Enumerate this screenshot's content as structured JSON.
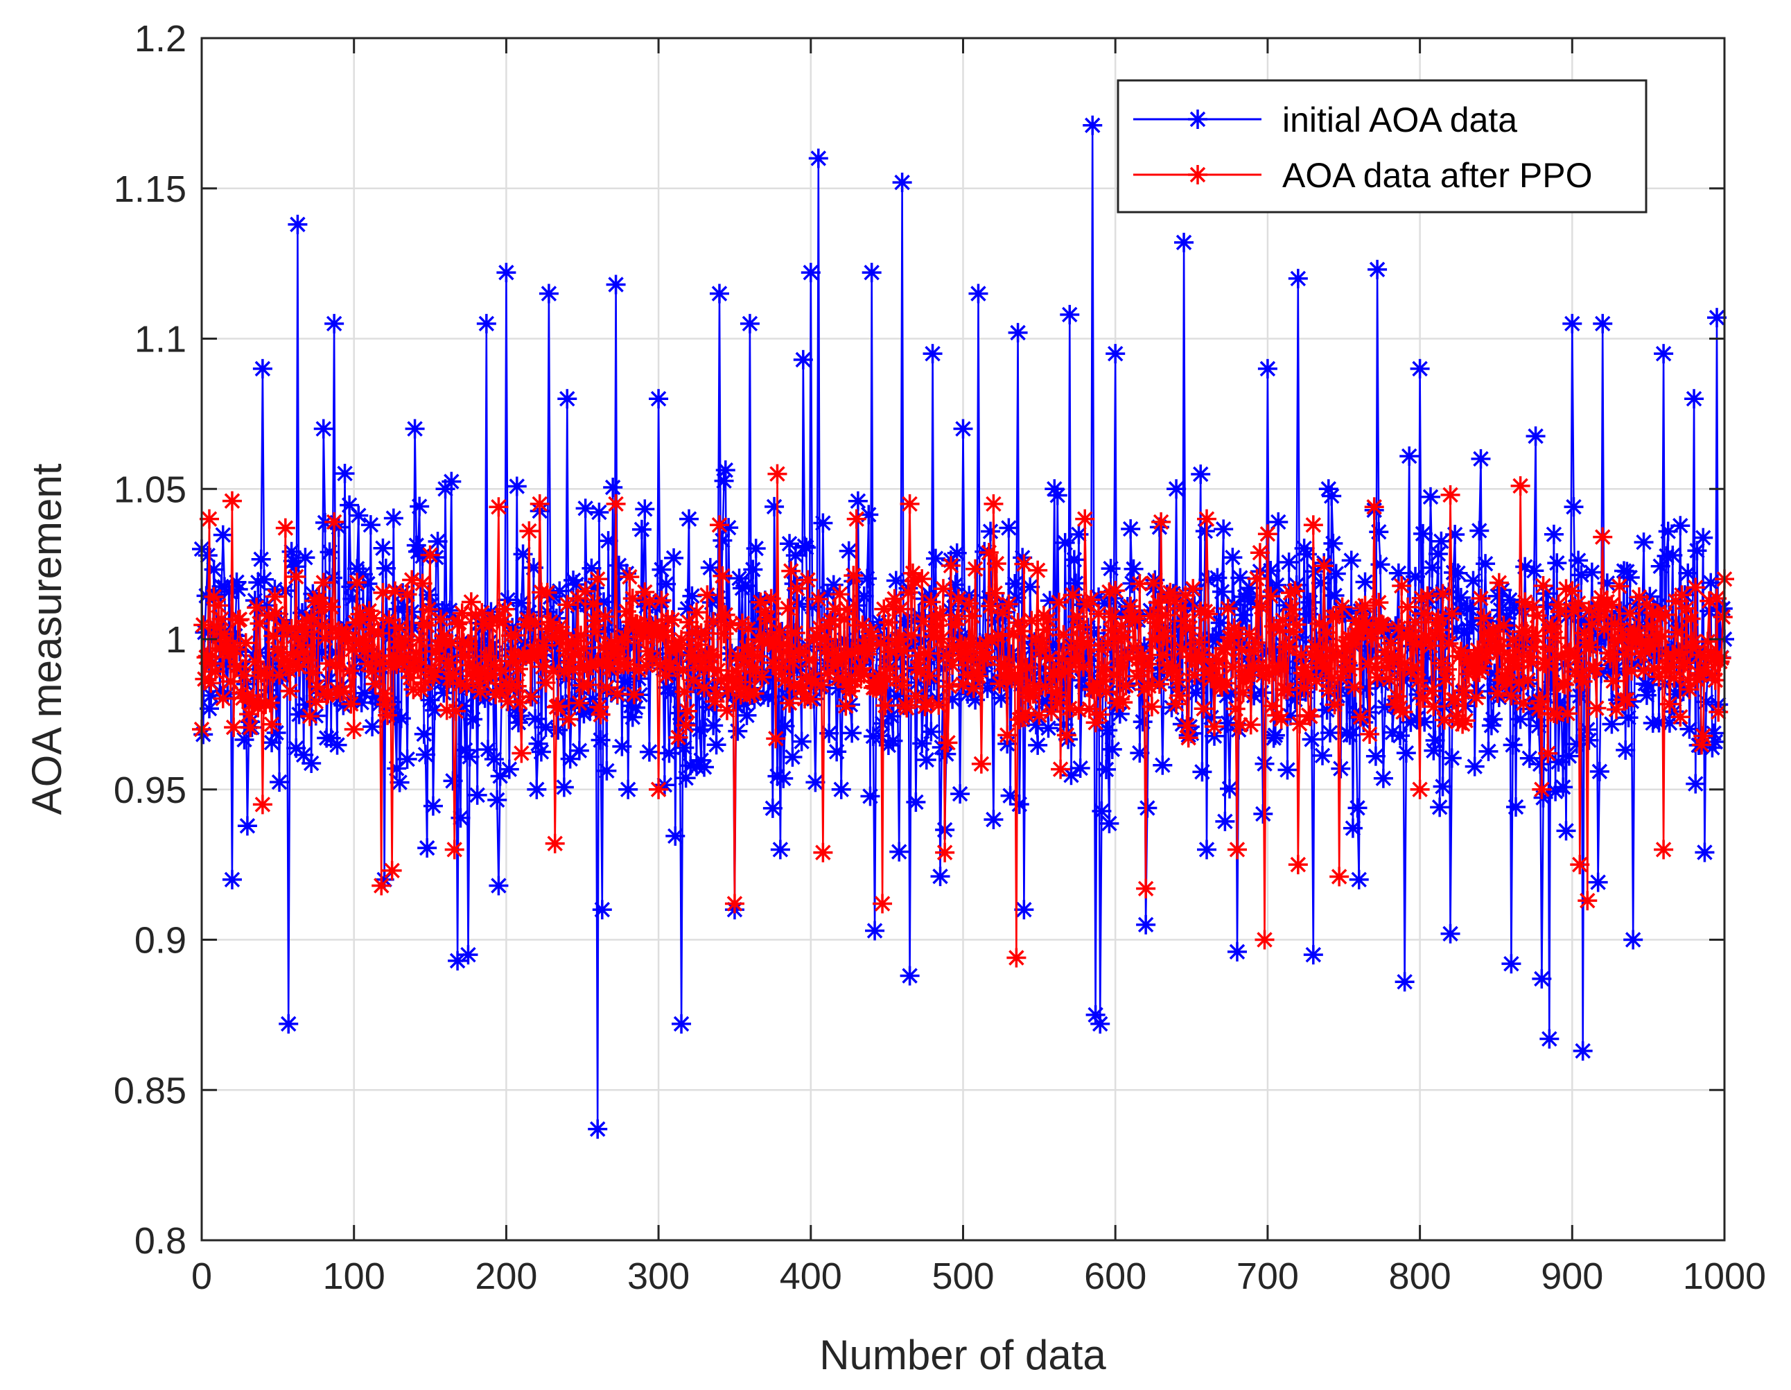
{
  "chart_data": {
    "type": "line",
    "title": "",
    "xlabel": "Number of data",
    "ylabel": "AOA measurement",
    "xlim": [
      0,
      1000
    ],
    "ylim": [
      0.8,
      1.2
    ],
    "grid": true,
    "x_ticks": [
      0,
      100,
      200,
      300,
      400,
      500,
      600,
      700,
      800,
      900,
      1000
    ],
    "x_tick_labels": [
      "0",
      "100",
      "200",
      "300",
      "400",
      "500",
      "600",
      "700",
      "800",
      "900",
      "1000"
    ],
    "y_ticks": [
      0.8,
      0.85,
      0.9,
      0.95,
      1.0,
      1.05,
      1.1,
      1.15,
      1.2
    ],
    "y_tick_labels": [
      "0.8",
      "0.85",
      "0.9",
      "0.95",
      "1",
      "1.05",
      "1.1",
      "1.15",
      "1.2"
    ],
    "legend_position": "top-right",
    "series": [
      {
        "name": "initial AOA data",
        "color": "#0000ff",
        "marker": "asterisk",
        "x": [
          0,
          20,
          40,
          57,
          63,
          80,
          87,
          100,
          120,
          140,
          160,
          168,
          175,
          187,
          195,
          200,
          220,
          228,
          240,
          260,
          263,
          272,
          280,
          300,
          315,
          320,
          340,
          350,
          360,
          380,
          395,
          400,
          405,
          420,
          440,
          442,
          460,
          465,
          480,
          500,
          510,
          520,
          536,
          540,
          560,
          570,
          585,
          587,
          590,
          600,
          620,
          640,
          645,
          660,
          680,
          700,
          720,
          730,
          740,
          760,
          772,
          790,
          800,
          820,
          840,
          860,
          880,
          885,
          900,
          907,
          920,
          940,
          960,
          980,
          995,
          1000
        ],
        "values": [
          1.03,
          0.92,
          1.09,
          0.872,
          1.138,
          1.07,
          1.105,
          0.99,
          0.92,
          1.07,
          1.05,
          0.893,
          0.895,
          1.105,
          0.918,
          1.122,
          0.95,
          1.115,
          1.08,
          0.837,
          0.91,
          1.118,
          0.95,
          1.08,
          0.872,
          1.04,
          1.115,
          0.91,
          1.105,
          0.93,
          1.093,
          1.122,
          1.16,
          0.95,
          1.122,
          0.903,
          1.152,
          0.888,
          1.095,
          1.07,
          1.115,
          0.94,
          1.102,
          0.91,
          1.05,
          1.108,
          1.171,
          0.875,
          0.872,
          1.095,
          0.905,
          1.05,
          1.132,
          0.93,
          0.896,
          1.09,
          1.12,
          0.895,
          1.05,
          0.92,
          1.123,
          0.886,
          1.09,
          0.902,
          1.06,
          0.892,
          0.887,
          0.867,
          1.105,
          0.863,
          1.105,
          0.9,
          1.095,
          1.08,
          1.107,
          1.0
        ],
        "spread": 0.045
      },
      {
        "name": "AOA data after PPO",
        "color": "#ff0000",
        "marker": "asterisk",
        "x": [
          0,
          5,
          20,
          40,
          55,
          87,
          100,
          118,
          125,
          150,
          166,
          195,
          215,
          222,
          232,
          260,
          272,
          300,
          340,
          350,
          378,
          400,
          408,
          430,
          447,
          465,
          488,
          500,
          520,
          535,
          540,
          580,
          620,
          630,
          660,
          680,
          698,
          700,
          720,
          730,
          747,
          770,
          800,
          820,
          866,
          880,
          905,
          910,
          920,
          960,
          1000
        ],
        "values": [
          0.97,
          1.04,
          1.046,
          0.945,
          1.037,
          1.039,
          0.97,
          0.918,
          0.923,
          1.028,
          0.93,
          1.044,
          1.036,
          1.045,
          0.932,
          1.02,
          1.045,
          0.95,
          1.038,
          0.912,
          1.055,
          0.98,
          0.929,
          1.04,
          0.912,
          1.045,
          0.929,
          0.985,
          1.045,
          0.894,
          1.025,
          1.04,
          0.917,
          1.039,
          1.04,
          0.93,
          0.9,
          1.035,
          0.925,
          1.038,
          0.921,
          1.044,
          0.95,
          1.048,
          1.051,
          0.95,
          0.925,
          0.913,
          1.034,
          0.93,
          1.02
        ],
        "spread": 0.022
      }
    ]
  }
}
